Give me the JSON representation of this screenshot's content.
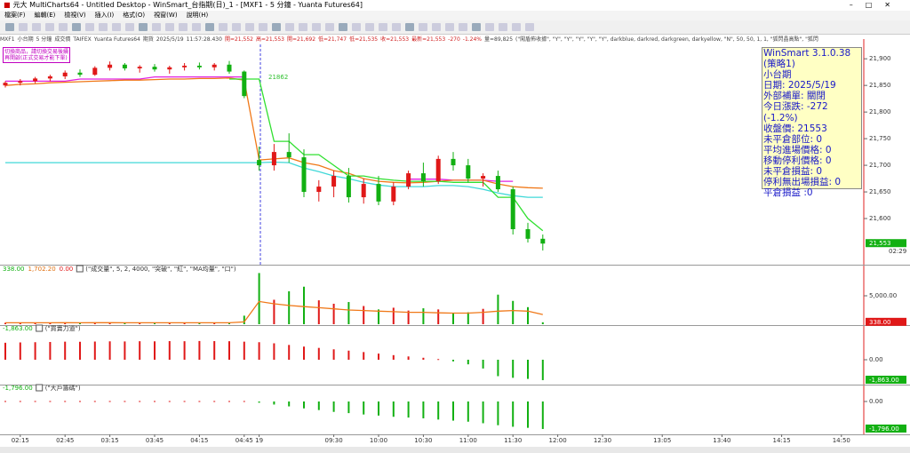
{
  "window": {
    "title": "元大 MultiCharts64 - Untitled Desktop - WinSmart_台指期(日)_1 - [MXF1 - 5 分鐘 - Yuanta Futures64]",
    "menu": [
      "檔案(F)",
      "編輯(E)",
      "檢視(V)",
      "插入(I)",
      "格式(O)",
      "視窗(W)",
      "說明(H)"
    ]
  },
  "symbol_bar": {
    "items": [
      "MXF1",
      "小台期",
      "5 分鐘",
      "成交價",
      "TAIFEX",
      "Yuanta Futures64",
      "期貨",
      "2025/5/19",
      "11:57:28.430",
      "開=21,552",
      "高=21,553",
      "開=21,692",
      "低=21,747",
      "低=21,535",
      "收=21,553",
      "最新=21,553",
      "-270",
      "-1.24%",
      "量=89,825",
      "(\"闖盾佈收據\", \"Y\", \"Y\", \"Y\", \"Y\", \"Y\", darkblue, darkred, darkgreen, darkyellow, \"N\", 50, 50, 1, 1, \"狐閃晶高點\", \"狐閃"
    ]
  },
  "note": [
    "切換商品，請切換交易後續",
    "再開啟(正式交易才能下單)"
  ],
  "info_box": {
    "lines": [
      "WinSmart 3.1.0.38",
      "(策略1)",
      "小台期",
      "日期: 2025/5/19",
      "外部補單: 關閉",
      "今日漲跌: -272 (-1.2%)",
      "收盤價: 21553",
      "未平倉部位: 0",
      "平均進場價格: 0",
      "移動停利價格: 0",
      "未平倉損益: 0",
      "停利無出場損益: 0",
      "平倉損益 :0"
    ]
  },
  "chart_data": [
    {
      "type": "candlestick",
      "annotation": "21862",
      "categories": [
        null,
        "02:15",
        null,
        null,
        "02:45",
        null,
        null,
        "03:15",
        null,
        null,
        "03:45",
        null,
        null,
        "04:15",
        null,
        null,
        "04:45",
        "19",
        null,
        null,
        null,
        null,
        "09:30",
        null,
        null,
        "10:00",
        null,
        null,
        "10:30",
        null,
        null,
        "11:00",
        null,
        null,
        "11:30",
        null,
        null,
        "12:00",
        null,
        null,
        "12:30",
        null,
        null,
        null,
        "13:05",
        null,
        null,
        null,
        "13:40",
        null,
        null,
        null,
        "14:15",
        null,
        null,
        null,
        "14:50",
        null
      ],
      "open": [
        21850,
        21855,
        21858,
        21863,
        21867,
        21874,
        21870,
        21883,
        21889,
        21882,
        21885,
        21880,
        21884,
        21887,
        21884,
        21889,
        21876,
        21710,
        21700,
        21725,
        21715,
        21650,
        21660,
        21680,
        21640,
        21665,
        21632,
        21660,
        21685,
        21670,
        21712,
        21700,
        21675,
        21680,
        21655,
        21580,
        21562,
        null,
        null,
        null,
        null,
        null,
        null,
        null,
        null,
        null,
        null,
        null,
        null,
        null,
        null,
        null,
        null,
        null,
        null,
        null,
        null,
        null
      ],
      "high": [
        21858,
        21862,
        21866,
        21870,
        21878,
        21880,
        21886,
        21895,
        21892,
        21888,
        21890,
        21887,
        21892,
        21893,
        21892,
        21896,
        21878,
        21735,
        21740,
        21760,
        21730,
        21672,
        21690,
        21695,
        21675,
        21680,
        21668,
        21690,
        21705,
        21718,
        21725,
        21712,
        21685,
        21690,
        21660,
        21592,
        21570,
        null,
        null,
        null,
        null,
        null,
        null,
        null,
        null,
        null,
        null,
        null,
        null,
        null,
        null,
        null,
        null,
        null,
        null,
        null,
        null,
        null
      ],
      "low": [
        21846,
        21850,
        21854,
        21858,
        21862,
        21866,
        21868,
        21878,
        21878,
        21874,
        21876,
        21872,
        21878,
        21880,
        21878,
        21872,
        21826,
        21690,
        21690,
        21705,
        21640,
        21632,
        21640,
        21630,
        21628,
        21625,
        21625,
        21655,
        21660,
        21665,
        21690,
        21668,
        21660,
        21650,
        21570,
        21555,
        21540,
        null,
        null,
        null,
        null,
        null,
        null,
        null,
        null,
        null,
        null,
        null,
        null,
        null,
        null,
        null,
        null,
        null,
        null,
        null,
        null,
        null
      ],
      "close": [
        21855,
        21858,
        21863,
        21867,
        21874,
        21870,
        21883,
        21889,
        21882,
        21885,
        21880,
        21884,
        21887,
        21884,
        21889,
        21876,
        21830,
        21700,
        21725,
        21715,
        21650,
        21660,
        21680,
        21640,
        21665,
        21632,
        21660,
        21685,
        21670,
        21712,
        21700,
        21675,
        21680,
        21655,
        21580,
        21562,
        21553,
        null,
        null,
        null,
        null,
        null,
        null,
        null,
        null,
        null,
        null,
        null,
        null,
        null,
        null,
        null,
        null,
        null,
        null,
        null,
        null,
        null
      ],
      "up_color": "#e01818",
      "down_color": "#12b012",
      "series": [
        {
          "color": "#e020e0",
          "values": [
            21858,
            21858,
            21858,
            21858,
            21858,
            21862,
            21862,
            21862,
            21862,
            21862,
            21866,
            21866,
            21866,
            21866,
            21866,
            21866,
            21866,
            null,
            null,
            null,
            null,
            null,
            null,
            null,
            null,
            null,
            null,
            21674,
            21674,
            21674,
            21672,
            21672,
            21672,
            21670,
            21670,
            null,
            null,
            null,
            null,
            null,
            null,
            null,
            null,
            null,
            null,
            null,
            null,
            null,
            null,
            null,
            null,
            null,
            null,
            null,
            null,
            null,
            null,
            null
          ]
        },
        {
          "color": "#f07818",
          "values": [
            21850,
            21852,
            21853,
            21855,
            21856,
            21857,
            21858,
            21859,
            21860,
            21860,
            21861,
            21862,
            21862,
            21863,
            21863,
            21864,
            21860,
            21710,
            21712,
            21714,
            21705,
            21700,
            21690,
            21685,
            21675,
            21670,
            21668,
            21667,
            21668,
            21670,
            21672,
            21672,
            21672,
            21665,
            21660,
            21658,
            21657,
            null,
            null,
            null,
            null,
            null,
            null,
            null,
            null,
            null,
            null,
            null,
            null,
            null,
            null,
            null,
            null,
            null,
            null,
            null,
            null,
            null
          ]
        },
        {
          "color": "#40d8d8",
          "values": [
            21705,
            21705,
            21705,
            21705,
            21705,
            21705,
            21705,
            21705,
            21705,
            21705,
            21705,
            21705,
            21705,
            21705,
            21705,
            21705,
            21705,
            21705,
            21706,
            21705,
            21695,
            21688,
            21680,
            21675,
            21668,
            21663,
            21660,
            21660,
            21660,
            21662,
            21662,
            21660,
            21655,
            21648,
            21643,
            21640,
            21640,
            null,
            null,
            null,
            null,
            null,
            null,
            null,
            null,
            null,
            null,
            null,
            null,
            null,
            null,
            null,
            null,
            null,
            null,
            null,
            null,
            null
          ]
        },
        {
          "color": "#30e030",
          "values": [
            null,
            null,
            null,
            null,
            null,
            null,
            null,
            null,
            null,
            null,
            null,
            null,
            null,
            null,
            null,
            21862,
            21862,
            21862,
            21745,
            21745,
            21720,
            21720,
            21700,
            21680,
            21680,
            21675,
            21672,
            21670,
            21670,
            21670,
            21668,
            21668,
            21668,
            21640,
            21640,
            21600,
            21577,
            null,
            null,
            null,
            null,
            null,
            null,
            null,
            null,
            null,
            null,
            null,
            null,
            null,
            null,
            null,
            null,
            null,
            null,
            null,
            null,
            null
          ]
        }
      ],
      "ylim": [
        21515,
        21927
      ],
      "yticks": [
        {
          "value": 21600,
          "label": "21,600"
        },
        {
          "value": 21650,
          "label": "21,650"
        },
        {
          "value": 21700,
          "label": "21,700"
        },
        {
          "value": 21750,
          "label": "21,750"
        },
        {
          "value": 21800,
          "label": "21,800"
        },
        {
          "value": 21850,
          "label": "21,850"
        },
        {
          "value": 21900,
          "label": "21,900"
        }
      ],
      "last": {
        "value": 21553,
        "label": "21,553"
      },
      "countdown": "02:29"
    },
    {
      "type": "bar",
      "header": [
        "338.00",
        "1,702.20",
        "0.00"
      ],
      "study": "(\"成交量\", 5, 2, 4000, \"突破\", \"紅\", \"MA均量\", \"口\")",
      "values": [
        250,
        220,
        300,
        260,
        280,
        240,
        320,
        210,
        230,
        190,
        260,
        220,
        240,
        200,
        230,
        300,
        1500,
        9000,
        4300,
        5800,
        6600,
        4200,
        3600,
        3900,
        3200,
        2600,
        2900,
        2400,
        2800,
        2600,
        1900,
        2100,
        2700,
        5200,
        4100,
        3000,
        338,
        null,
        null,
        null,
        null,
        null,
        null,
        null,
        null,
        null,
        null,
        null,
        null,
        null,
        null,
        null,
        null,
        null,
        null,
        null,
        null,
        null
      ],
      "ma": [
        250,
        252,
        255,
        256,
        258,
        257,
        260,
        258,
        257,
        255,
        256,
        254,
        252,
        250,
        250,
        252,
        400,
        4000,
        3600,
        3300,
        3100,
        2900,
        2700,
        2500,
        2400,
        2300,
        2200,
        2100,
        2100,
        2000,
        1950,
        1950,
        2100,
        2300,
        2400,
        2300,
        1702,
        null,
        null,
        null,
        null,
        null,
        null,
        null,
        null,
        null,
        null,
        null,
        null,
        null,
        null,
        null,
        null,
        null,
        null,
        null,
        null,
        null
      ],
      "ma_color": "#f07818",
      "up_color": "#e01818",
      "down_color": "#12b012",
      "ylim": [
        0,
        10000
      ],
      "yticks": [
        {
          "value": 5000,
          "label": "5,000.00"
        }
      ],
      "last": {
        "value": 338,
        "label": "338.00"
      }
    },
    {
      "type": "bar",
      "header": [
        "-1,863.00"
      ],
      "study": "(\"買賣力道\")",
      "values": [
        1550,
        1580,
        1600,
        1620,
        1650,
        1640,
        1660,
        1680,
        1670,
        1690,
        1680,
        1700,
        1690,
        1710,
        1700,
        1690,
        1650,
        1600,
        1500,
        1350,
        1200,
        1080,
        950,
        830,
        700,
        560,
        420,
        300,
        180,
        60,
        -150,
        -420,
        -800,
        -1500,
        -1650,
        -1750,
        -1863,
        null,
        null,
        null,
        null,
        null,
        null,
        null,
        null,
        null,
        null,
        null,
        null,
        null,
        null,
        null,
        null,
        null,
        null,
        null,
        null,
        null
      ],
      "up_color": "#e01818",
      "down_color": "#12b012",
      "ylim": [
        -2190,
        3000
      ],
      "yticks": [
        {
          "value": 0,
          "label": "0.00"
        }
      ],
      "last": {
        "value": -1863,
        "label": "-1,863.00"
      }
    },
    {
      "type": "bar",
      "header": [
        "-1,796.00"
      ],
      "study": "(\"大戶籌碼\")",
      "values": [
        30,
        30,
        30,
        30,
        30,
        30,
        30,
        30,
        30,
        30,
        30,
        30,
        30,
        30,
        30,
        30,
        30,
        -80,
        -200,
        -320,
        -450,
        -560,
        -680,
        -760,
        -850,
        -920,
        -1000,
        -1050,
        -1100,
        -1180,
        -1250,
        -1320,
        -1420,
        -1550,
        -1650,
        -1720,
        -1796,
        null,
        null,
        null,
        null,
        null,
        null,
        null,
        null,
        null,
        null,
        null,
        null,
        null,
        null,
        null,
        null,
        null,
        null,
        null,
        null,
        null
      ],
      "up_color": "#e01818",
      "down_color": "#12b012",
      "ylim": [
        -2088,
        986
      ],
      "yticks": [
        {
          "value": 0,
          "label": "0.00"
        }
      ],
      "last": {
        "value": -1796,
        "label": "-1,796.00"
      }
    }
  ]
}
